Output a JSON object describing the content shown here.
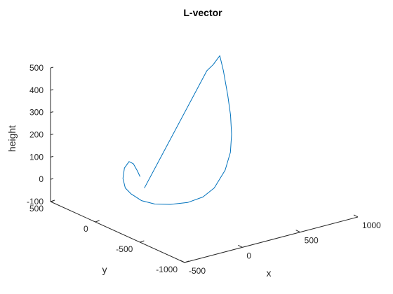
{
  "chart_data": {
    "type": "line",
    "title": "L-vector",
    "xlabel": "x",
    "ylabel": "y",
    "zlabel": "height",
    "xlim": [
      -500,
      1000
    ],
    "ylim": [
      -1000,
      500
    ],
    "zlim": [
      -100,
      500
    ],
    "x_ticks": [
      {
        "value": -500,
        "label": "-500"
      },
      {
        "value": 0,
        "label": "0"
      },
      {
        "value": 500,
        "label": "500"
      },
      {
        "value": 1000,
        "label": "1000"
      }
    ],
    "y_ticks": [
      {
        "value": 500,
        "label": "500"
      },
      {
        "value": 0,
        "label": "0"
      },
      {
        "value": -500,
        "label": "-500"
      },
      {
        "value": -1000,
        "label": "-1000"
      }
    ],
    "z_ticks": [
      {
        "value": -100,
        "label": "-100"
      },
      {
        "value": 0,
        "label": "0"
      },
      {
        "value": 100,
        "label": "100"
      },
      {
        "value": 200,
        "label": "200"
      },
      {
        "value": 300,
        "label": "300"
      },
      {
        "value": 400,
        "label": "400"
      },
      {
        "value": 500,
        "label": "500"
      }
    ],
    "grid": false,
    "series": [
      {
        "color": "#0072bd",
        "points": [
          [
            -50,
            80,
            27
          ],
          [
            -74,
            80,
            57
          ],
          [
            -108,
            80,
            93
          ],
          [
            -145,
            80,
            108
          ],
          [
            -185,
            80,
            84
          ],
          [
            -198,
            80,
            39
          ],
          [
            -178,
            80,
            -6
          ],
          [
            -127,
            80,
            -40
          ],
          [
            -38,
            80,
            -82
          ],
          [
            78,
            80,
            -113
          ],
          [
            212,
            80,
            -133
          ],
          [
            362,
            80,
            -145
          ],
          [
            494,
            80,
            -138
          ],
          [
            592,
            80,
            -111
          ],
          [
            686,
            80,
            -44
          ],
          [
            732,
            80,
            30
          ],
          [
            742,
            80,
            109
          ],
          [
            733,
            80,
            197
          ],
          [
            709,
            80,
            288
          ],
          [
            671,
            80,
            405
          ],
          [
            640,
            80,
            476
          ],
          [
            583,
            80,
            444
          ],
          [
            528,
            80,
            424
          ],
          [
            -13,
            80,
            -29
          ]
        ]
      }
    ]
  }
}
